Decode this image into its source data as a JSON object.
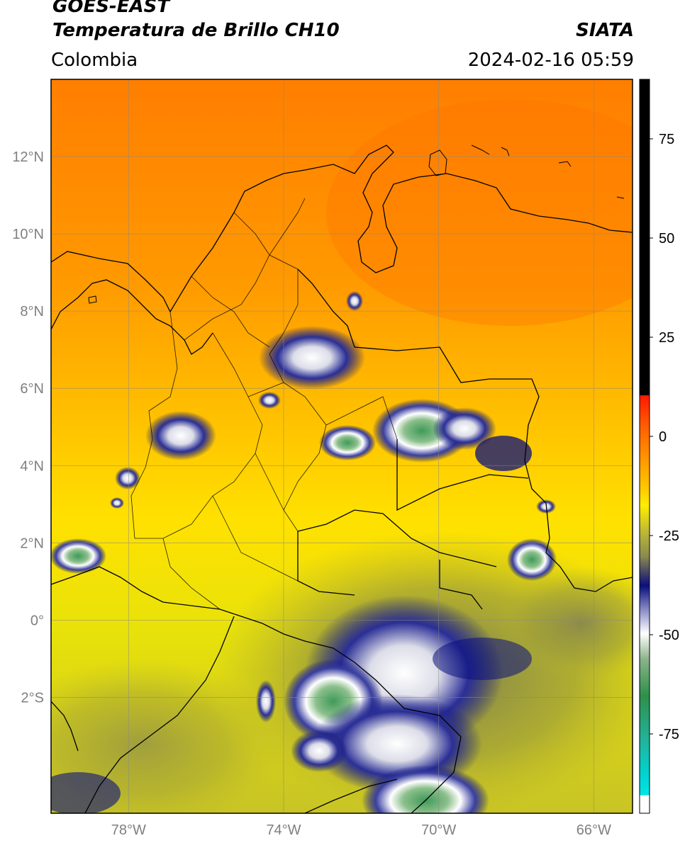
{
  "header": {
    "satellite": "GOES-EAST",
    "product": "Temperatura de Brillo CH10",
    "region": "Colombia",
    "agency": "SIATA",
    "timestamp": "2024-02-16 05:59"
  },
  "map": {
    "lon_range": [
      -80,
      -65
    ],
    "lat_range": [
      -5,
      14
    ],
    "lat_ticks": [
      {
        "value": 12,
        "label": "12°N"
      },
      {
        "value": 10,
        "label": "10°N"
      },
      {
        "value": 8,
        "label": "8°N"
      },
      {
        "value": 6,
        "label": "6°N"
      },
      {
        "value": 4,
        "label": "4°N"
      },
      {
        "value": 2,
        "label": "2°N"
      },
      {
        "value": 0,
        "label": "0°"
      },
      {
        "value": -2,
        "label": "2°S"
      }
    ],
    "lon_ticks": [
      {
        "value": -78,
        "label": "78°W"
      },
      {
        "value": -74,
        "label": "74°W"
      },
      {
        "value": -70,
        "label": "70°W"
      },
      {
        "value": -66,
        "label": "66°W"
      }
    ],
    "grid": true
  },
  "colorbar": {
    "range": [
      -95,
      90
    ],
    "ticks": [
      {
        "value": 75,
        "label": "75"
      },
      {
        "value": 50,
        "label": "50"
      },
      {
        "value": 25,
        "label": "25"
      },
      {
        "value": 0,
        "label": "0"
      },
      {
        "value": -25,
        "label": "-25"
      },
      {
        "value": -50,
        "label": "-50"
      },
      {
        "value": -75,
        "label": "-75"
      }
    ],
    "colors": {
      "above_10": "#000000",
      "red": "#ff1a00",
      "orange": "#ff8c00",
      "yellow": "#ffee00",
      "olive": "#9b9b3c",
      "navy": "#0a0f7d",
      "white": "#ffffff",
      "green": "#2f8f4a",
      "teal": "#22b39a",
      "cyan": "#00e5e5"
    }
  }
}
